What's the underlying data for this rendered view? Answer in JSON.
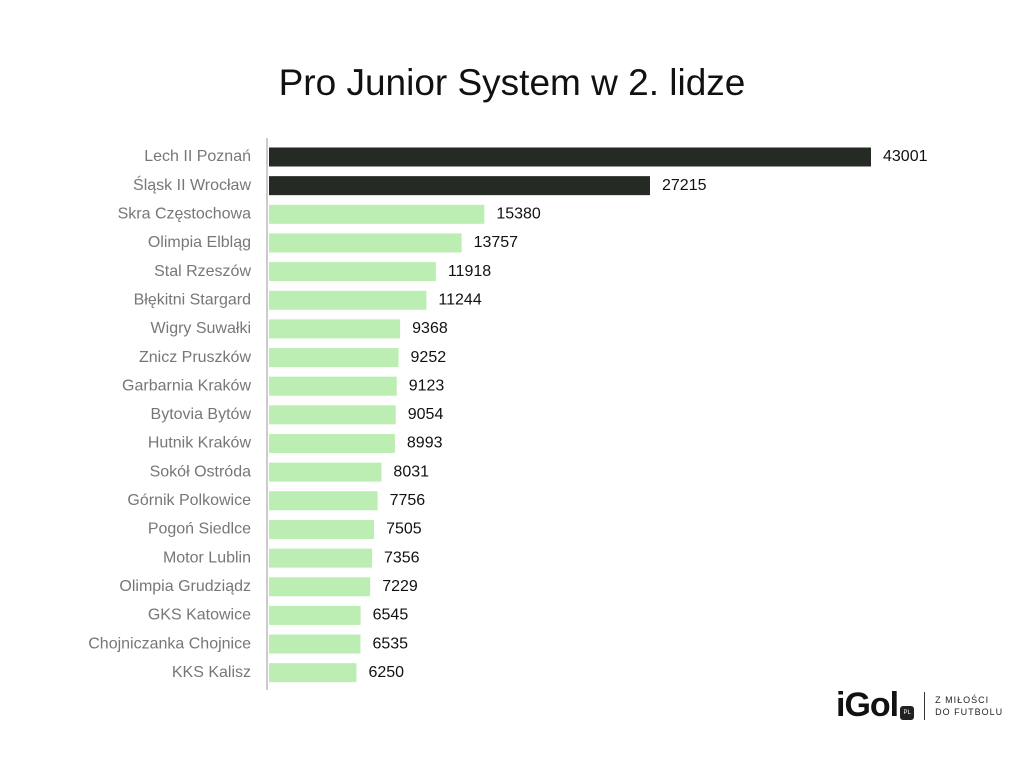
{
  "chart_data": {
    "type": "bar",
    "orientation": "horizontal",
    "title": "Pro Junior System w 2. lidze",
    "xlabel": "",
    "ylabel": "",
    "categories": [
      "Lech II Poznań",
      "Śląsk II Wrocław",
      "Skra Częstochowa",
      "Olimpia Elbląg",
      "Stal Rzeszów",
      "Błękitni Stargard",
      "Wigry Suwałki",
      "Znicz Pruszków",
      "Garbarnia Kraków",
      "Bytovia Bytów",
      "Hutnik Kraków",
      "Sokół Ostróda",
      "Górnik Polkowice",
      "Pogoń Siedlce",
      "Motor Lublin",
      "Olimpia Grudziądz",
      "GKS Katowice",
      "Chojniczanka Chojnice",
      "KKS Kalisz"
    ],
    "values": [
      43001,
      27215,
      15380,
      13757,
      11918,
      11244,
      9368,
      9252,
      9123,
      9054,
      8993,
      8031,
      7756,
      7505,
      7356,
      7229,
      6545,
      6535,
      6250
    ],
    "highlight_count": 2,
    "colors": {
      "highlight": "#262a25",
      "default": "#bcedb3",
      "axis": "#cccccc"
    },
    "xlim": [
      0,
      43001
    ],
    "grid": false
  },
  "logo": {
    "main": "iGol",
    "badge": "PL",
    "tagline_1": "Z MIŁOŚCI",
    "tagline_2": "DO FUTBOLU"
  }
}
